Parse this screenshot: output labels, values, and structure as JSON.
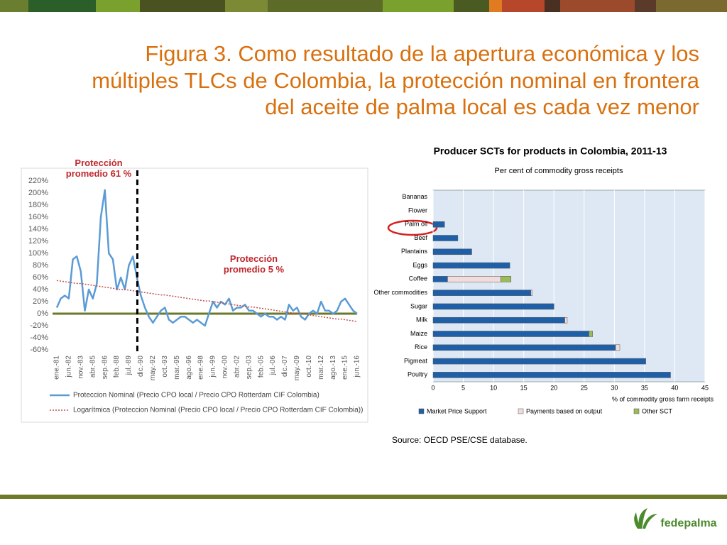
{
  "slide": {
    "title": [
      "Figura 3. Como resultado de la apertura económica y los",
      "múltiples TLCs de Colombia, la protección nominal en frontera",
      "del aceite de palma local es cada vez menor"
    ],
    "source": "Source: OECD PSE/CSE database.",
    "logo": "fedepalma"
  },
  "chart_data": [
    {
      "type": "line",
      "categories": [
        "ene.-81",
        null,
        null,
        "jun.-82",
        null,
        null,
        "nov.-83",
        null,
        null,
        "abr.-85",
        null,
        null,
        "sep.-86",
        null,
        null,
        "feb.-88",
        null,
        null,
        "jul.-89",
        null,
        null,
        "dic.-90",
        null,
        null,
        "may.-92",
        null,
        null,
        "oct.-93",
        null,
        null,
        "mar.-95",
        null,
        null,
        "ago.-96",
        null,
        null,
        "ene.-98",
        null,
        null,
        "jun.-99",
        null,
        null,
        "nov.-00",
        null,
        null,
        "abr.-02",
        null,
        null,
        "sep.-03",
        null,
        null,
        "feb.-05",
        null,
        null,
        "jul.-06",
        null,
        null,
        "dic.-07",
        null,
        null,
        "may.-09",
        null,
        null,
        "oct.-10",
        null,
        null,
        "mar.-12",
        null,
        null,
        "ago.-13",
        null,
        null,
        "ene.-15",
        null,
        null,
        "jun.-16"
      ],
      "series": [
        {
          "name": "Proteccion Nominal (Precio CPO local / Precio CPO Rotterdam CIF Colombia)",
          "color": "#5b9bd5",
          "style": "solid",
          "values": [
            10,
            25,
            30,
            25,
            90,
            95,
            70,
            5,
            40,
            25,
            50,
            160,
            205,
            100,
            90,
            40,
            60,
            40,
            80,
            95,
            60,
            30,
            10,
            -5,
            -15,
            -5,
            5,
            10,
            -10,
            -15,
            -10,
            -5,
            -5,
            -10,
            -15,
            -10,
            -15,
            -20,
            0,
            20,
            10,
            20,
            15,
            25,
            5,
            10,
            10,
            15,
            5,
            5,
            0,
            -5,
            0,
            -5,
            -5,
            -10,
            -5,
            -10,
            15,
            5,
            10,
            -5,
            -10,
            0,
            5,
            0,
            20,
            5,
            5,
            0,
            5,
            20,
            25,
            15,
            5,
            0
          ]
        },
        {
          "name": "Logarítmica (Proteccion Nominal (Precio CPO local / Precio CPO Rotterdam CIF Colombia))",
          "color": "#c0504d",
          "style": "dotted",
          "values": [
            55,
            54,
            53,
            52,
            51,
            50,
            50,
            49,
            48,
            47,
            46,
            45,
            44,
            43,
            42,
            41,
            40,
            40,
            39,
            38,
            37,
            36,
            35,
            34,
            33,
            32,
            31,
            31,
            30,
            29,
            28,
            27,
            26,
            25,
            24,
            23,
            22,
            21,
            21,
            20,
            19,
            18,
            17,
            16,
            15,
            14,
            13,
            12,
            11,
            11,
            10,
            9,
            8,
            7,
            6,
            5,
            4,
            3,
            2,
            1,
            1,
            0,
            -1,
            -2,
            -3,
            -4,
            -5,
            -6,
            -7,
            -8,
            -9,
            -9,
            -10,
            -11,
            -12,
            -13
          ]
        }
      ],
      "ylim": [
        -60,
        220
      ],
      "yticks": [
        {
          "value": -60,
          "label": "-60%"
        },
        {
          "value": -40,
          "label": "-40%"
        },
        {
          "value": -20,
          "label": "-20%"
        },
        {
          "value": 0,
          "label": "0%"
        },
        {
          "value": 20,
          "label": "20%"
        },
        {
          "value": 40,
          "label": "40%"
        },
        {
          "value": 60,
          "label": "60%"
        },
        {
          "value": 80,
          "label": "80%"
        },
        {
          "value": 100,
          "label": "100%"
        },
        {
          "value": 120,
          "label": "120%"
        },
        {
          "value": 140,
          "label": "140%"
        },
        {
          "value": 160,
          "label": "160%"
        },
        {
          "value": 180,
          "label": "180%"
        },
        {
          "value": 200,
          "label": "200%"
        },
        {
          "value": 220,
          "label": "220%"
        }
      ],
      "grid": false,
      "reference_line": {
        "value": 0,
        "color": "#6b7a2a"
      },
      "divider": "dic.-90",
      "annotations": [
        "Protección promedio 61 %",
        "Protección promedio 5 %"
      ],
      "legend": "bottom"
    },
    {
      "type": "bar",
      "orientation": "horizontal",
      "stacked": true,
      "title": "Producer SCTs for products in Colombia, 2011-13",
      "subtitle": "Per cent of commodity gross receipts",
      "x_label": "% of commodity gross farm receipts",
      "categories": [
        "Bananas",
        "Flower",
        "Palm oil",
        "Beef",
        "Plantains",
        "Eggs",
        "Coffee",
        "Other commodities",
        "Sugar",
        "Milk",
        "Maize",
        "Rice",
        "Pigmeat",
        "Poultry"
      ],
      "series": [
        {
          "name": "Market Price Support",
          "color": "#1f5fa8",
          "values": [
            0,
            0,
            1.9,
            4.1,
            6.4,
            12.7,
            2.4,
            16.2,
            20.0,
            21.8,
            25.8,
            30.2,
            35.2,
            39.3
          ]
        },
        {
          "name": "Payments based on output",
          "color": "#f2dcdb",
          "values": [
            0,
            0,
            0,
            0,
            0,
            0,
            8.8,
            0.2,
            0,
            0.4,
            0,
            0.7,
            0,
            0
          ]
        },
        {
          "name": "Other SCT",
          "color": "#9bbb59",
          "values": [
            0,
            0,
            0,
            0,
            0,
            0,
            1.7,
            0,
            0,
            0,
            0.6,
            0,
            0,
            0
          ]
        }
      ],
      "xlim": [
        0,
        45
      ],
      "xticks": [
        0,
        5,
        10,
        15,
        20,
        25,
        30,
        35,
        40,
        45
      ],
      "grid": true,
      "legend": "bottom"
    }
  ]
}
